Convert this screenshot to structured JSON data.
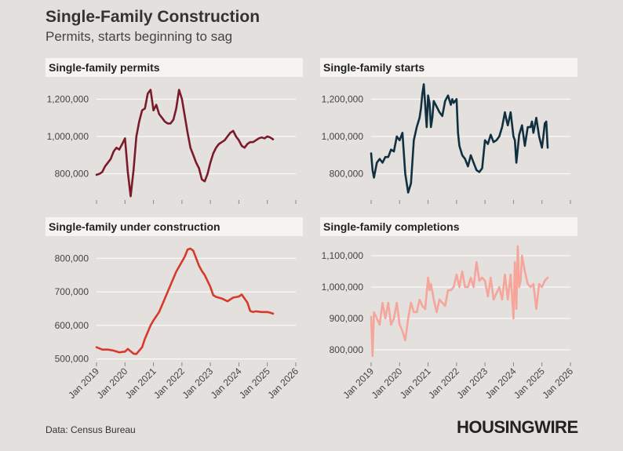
{
  "header": {
    "title": "Single-Family Construction",
    "subtitle": "Permits, starts beginning to sag"
  },
  "footer": {
    "source": "Data: Census Bureau",
    "brand": "HOUSINGWIRE"
  },
  "colors": {
    "permits": "#7b1a2a",
    "starts": "#10303f",
    "under_construction": "#d63a2a",
    "completions": "#f5a59a",
    "grid": "#ffffff",
    "axis_text": "#444444"
  },
  "chart_data": [
    {
      "id": "permits",
      "type": "line",
      "title": "Single-family permits",
      "ylim": [
        660000,
        1290000
      ],
      "y_ticks": [
        800000,
        1000000,
        1200000
      ],
      "y_tick_labels": [
        "800,000",
        "1,000,000",
        "1,200,000"
      ],
      "x_ticks": [
        2019,
        2020,
        2021,
        2022,
        2023,
        2024,
        2025,
        2026
      ],
      "x_tick_labels": [
        "Jan 2019",
        "Jan 2020",
        "Jan 2021",
        "Jan 2022",
        "Jan 2023",
        "Jan 2024",
        "Jan 2025",
        "Jan 2026"
      ],
      "xlim": [
        2019,
        2026
      ],
      "x": [
        2019.0,
        2019.1,
        2019.2,
        2019.3,
        2019.4,
        2019.5,
        2019.6,
        2019.7,
        2019.8,
        2019.9,
        2020.0,
        2020.1,
        2020.2,
        2020.3,
        2020.4,
        2020.5,
        2020.6,
        2020.7,
        2020.8,
        2020.9,
        2021.0,
        2021.1,
        2021.2,
        2021.3,
        2021.4,
        2021.5,
        2021.6,
        2021.7,
        2021.8,
        2021.9,
        2022.0,
        2022.1,
        2022.2,
        2022.3,
        2022.4,
        2022.5,
        2022.6,
        2022.7,
        2022.8,
        2022.9,
        2023.0,
        2023.1,
        2023.2,
        2023.3,
        2023.4,
        2023.5,
        2023.6,
        2023.7,
        2023.8,
        2023.9,
        2024.0,
        2024.1,
        2024.2,
        2024.3,
        2024.4,
        2024.5,
        2024.6,
        2024.7,
        2024.8,
        2024.9,
        2025.0,
        2025.1,
        2025.2
      ],
      "values": [
        795000,
        800000,
        810000,
        840000,
        860000,
        880000,
        920000,
        940000,
        930000,
        960000,
        990000,
        810000,
        680000,
        820000,
        1000000,
        1080000,
        1140000,
        1150000,
        1230000,
        1250000,
        1140000,
        1170000,
        1120000,
        1100000,
        1080000,
        1070000,
        1070000,
        1090000,
        1150000,
        1250000,
        1200000,
        1110000,
        1020000,
        940000,
        900000,
        860000,
        830000,
        770000,
        760000,
        800000,
        860000,
        910000,
        940000,
        960000,
        970000,
        980000,
        1000000,
        1020000,
        1030000,
        1000000,
        980000,
        950000,
        940000,
        960000,
        970000,
        970000,
        980000,
        990000,
        995000,
        990000,
        1000000,
        995000,
        985000
      ]
    },
    {
      "id": "starts",
      "type": "line",
      "title": "Single-family starts",
      "ylim": [
        660000,
        1290000
      ],
      "y_ticks": [
        800000,
        1000000,
        1200000
      ],
      "y_tick_labels": [
        "800,000",
        "1,000,000",
        "1,200,000"
      ],
      "x_ticks": [
        2019,
        2020,
        2021,
        2022,
        2023,
        2024,
        2025,
        2026
      ],
      "x_tick_labels": [
        "Jan 2019",
        "Jan 2020",
        "Jan 2021",
        "Jan 2022",
        "Jan 2023",
        "Jan 2024",
        "Jan 2025",
        "Jan 2026"
      ],
      "xlim": [
        2019,
        2026
      ],
      "x": [
        2019.0,
        2019.05,
        2019.1,
        2019.2,
        2019.3,
        2019.4,
        2019.5,
        2019.6,
        2019.7,
        2019.8,
        2019.9,
        2020.0,
        2020.1,
        2020.2,
        2020.3,
        2020.4,
        2020.5,
        2020.6,
        2020.7,
        2020.75,
        2020.8,
        2020.85,
        2020.9,
        2020.95,
        2021.0,
        2021.05,
        2021.1,
        2021.15,
        2021.2,
        2021.3,
        2021.4,
        2021.5,
        2021.6,
        2021.7,
        2021.8,
        2021.85,
        2021.9,
        2022.0,
        2022.05,
        2022.1,
        2022.2,
        2022.3,
        2022.4,
        2022.5,
        2022.6,
        2022.7,
        2022.8,
        2022.9,
        2023.0,
        2023.1,
        2023.2,
        2023.3,
        2023.4,
        2023.5,
        2023.6,
        2023.7,
        2023.75,
        2023.8,
        2023.9,
        2024.0,
        2024.05,
        2024.1,
        2024.2,
        2024.3,
        2024.4,
        2024.5,
        2024.6,
        2024.65,
        2024.7,
        2024.8,
        2024.9,
        2025.0,
        2025.05,
        2025.1,
        2025.15,
        2025.2
      ],
      "values": [
        910000,
        820000,
        780000,
        860000,
        880000,
        860000,
        890000,
        890000,
        930000,
        920000,
        1000000,
        980000,
        1020000,
        800000,
        700000,
        750000,
        980000,
        1050000,
        1100000,
        1150000,
        1230000,
        1280000,
        1170000,
        1050000,
        1220000,
        1180000,
        1050000,
        1100000,
        1190000,
        1160000,
        1130000,
        1110000,
        1190000,
        1220000,
        1170000,
        1200000,
        1180000,
        1200000,
        1020000,
        950000,
        900000,
        880000,
        840000,
        900000,
        860000,
        820000,
        810000,
        830000,
        980000,
        960000,
        1010000,
        970000,
        980000,
        1000000,
        1050000,
        1130000,
        1090000,
        1060000,
        1130000,
        1000000,
        980000,
        860000,
        1010000,
        1060000,
        950000,
        1050000,
        1050000,
        1080000,
        1020000,
        1100000,
        1000000,
        940000,
        1000000,
        1070000,
        1080000,
        940000
      ]
    },
    {
      "id": "under_construction",
      "type": "line",
      "title": "Single-family under construction",
      "ylim": [
        490000,
        845000
      ],
      "y_ticks": [
        500000,
        600000,
        700000,
        800000
      ],
      "y_tick_labels": [
        "500,000",
        "600,000",
        "700,000",
        "800,000"
      ],
      "x_ticks": [
        2019,
        2020,
        2021,
        2022,
        2023,
        2024,
        2025,
        2026
      ],
      "x_tick_labels": [
        "Jan 2019",
        "Jan 2020",
        "Jan 2021",
        "Jan 2022",
        "Jan 2023",
        "Jan 2024",
        "Jan 2025",
        "Jan 2026"
      ],
      "xlim": [
        2019,
        2026
      ],
      "x": [
        2019.0,
        2019.2,
        2019.4,
        2019.6,
        2019.8,
        2020.0,
        2020.1,
        2020.3,
        2020.4,
        2020.6,
        2020.7,
        2020.9,
        2021.0,
        2021.2,
        2021.4,
        2021.6,
        2021.8,
        2022.0,
        2022.1,
        2022.2,
        2022.3,
        2022.4,
        2022.5,
        2022.6,
        2022.7,
        2022.8,
        2023.0,
        2023.1,
        2023.2,
        2023.4,
        2023.6,
        2023.8,
        2024.0,
        2024.1,
        2024.2,
        2024.3,
        2024.4,
        2024.5,
        2024.6,
        2024.8,
        2025.0,
        2025.1,
        2025.2
      ],
      "values": [
        535000,
        528000,
        528000,
        525000,
        520000,
        522000,
        530000,
        516000,
        515000,
        535000,
        560000,
        600000,
        615000,
        640000,
        680000,
        720000,
        760000,
        790000,
        805000,
        826000,
        829000,
        822000,
        800000,
        778000,
        762000,
        750000,
        715000,
        690000,
        685000,
        680000,
        672000,
        683000,
        686000,
        692000,
        680000,
        668000,
        643000,
        640000,
        642000,
        640000,
        640000,
        638000,
        635000
      ]
    },
    {
      "id": "completions",
      "type": "line",
      "title": "Single-family completions",
      "ylim": [
        760000,
        1140000
      ],
      "y_ticks": [
        800000,
        900000,
        1000000,
        1100000
      ],
      "y_tick_labels": [
        "800,000",
        "900,000",
        "1,000,000",
        "1,100,000"
      ],
      "x_ticks": [
        2019,
        2020,
        2021,
        2022,
        2023,
        2024,
        2025,
        2026
      ],
      "x_tick_labels": [
        "Jan 2019",
        "Jan 2020",
        "Jan 2021",
        "Jan 2022",
        "Jan 2023",
        "Jan 2024",
        "Jan 2025",
        "Jan 2026"
      ],
      "xlim": [
        2019,
        2026
      ],
      "x": [
        2019.0,
        2019.05,
        2019.1,
        2019.2,
        2019.3,
        2019.4,
        2019.5,
        2019.6,
        2019.7,
        2019.8,
        2019.9,
        2020.0,
        2020.1,
        2020.2,
        2020.3,
        2020.4,
        2020.5,
        2020.6,
        2020.7,
        2020.8,
        2020.9,
        2021.0,
        2021.05,
        2021.1,
        2021.2,
        2021.3,
        2021.4,
        2021.5,
        2021.6,
        2021.7,
        2021.8,
        2021.9,
        2022.0,
        2022.1,
        2022.2,
        2022.3,
        2022.4,
        2022.5,
        2022.6,
        2022.7,
        2022.8,
        2022.9,
        2023.0,
        2023.1,
        2023.2,
        2023.3,
        2023.4,
        2023.5,
        2023.6,
        2023.7,
        2023.8,
        2023.9,
        2024.0,
        2024.05,
        2024.1,
        2024.15,
        2024.2,
        2024.25,
        2024.3,
        2024.4,
        2024.5,
        2024.6,
        2024.7,
        2024.8,
        2024.9,
        2025.0,
        2025.1,
        2025.2
      ],
      "values": [
        905000,
        780000,
        920000,
        900000,
        880000,
        950000,
        900000,
        950000,
        880000,
        900000,
        950000,
        880000,
        860000,
        830000,
        900000,
        950000,
        920000,
        920000,
        960000,
        940000,
        930000,
        1030000,
        990000,
        1010000,
        960000,
        920000,
        960000,
        950000,
        940000,
        990000,
        990000,
        1000000,
        1040000,
        1000000,
        1050000,
        1000000,
        1000000,
        1030000,
        1000000,
        1080000,
        1020000,
        1030000,
        1020000,
        970000,
        1030000,
        960000,
        980000,
        1000000,
        960000,
        1040000,
        960000,
        1040000,
        900000,
        1080000,
        930000,
        1130000,
        1000000,
        1020000,
        1100000,
        1050000,
        1010000,
        1000000,
        1010000,
        930000,
        1010000,
        1000000,
        1020000,
        1030000
      ]
    }
  ]
}
